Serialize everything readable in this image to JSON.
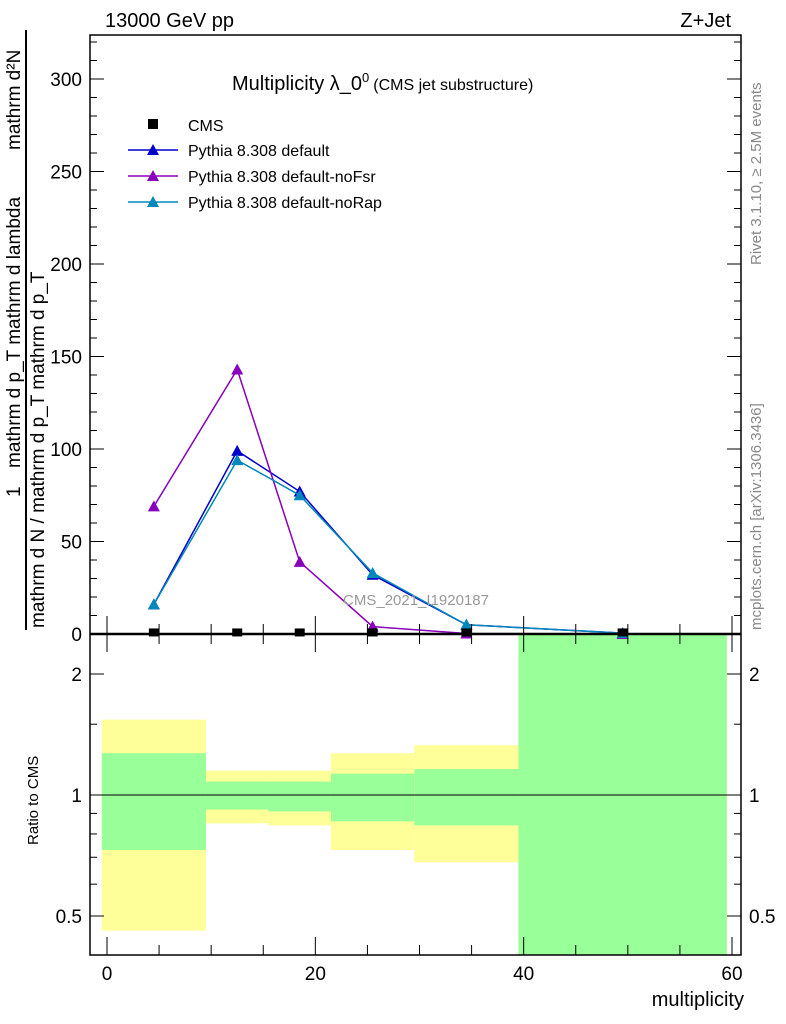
{
  "chart_data": {
    "type": "line",
    "title": "Multiplicity λ_0",
    "title_sup": "0",
    "title_note": "(CMS jet substructure)",
    "top_left": "13000 GeV pp",
    "top_right": "Z+Jet",
    "side_label_1": "Rivet 3.1.10, ≥ 2.5M events",
    "side_label_2": "mcplots.cern.ch [arXiv:1306.3436]",
    "watermark": "CMS_2021_I1920187",
    "ylabel_num": "mathrm d²N",
    "ylabel_den": "mathrm d p_T mathrm d lambda",
    "ylabel_main_1": "1",
    "ylabel_main_2": "mathrm d N / mathrm d p_T mathrm d p_T",
    "xlabel": "multiplicity",
    "ratio_ylabel": "Ratio to CMS",
    "xlim": [
      -0.5,
      60.5
    ],
    "ylim": [
      0,
      325
    ],
    "ratio_ylim": [
      0.4,
      2.5
    ],
    "xticks": [
      0,
      20,
      40,
      60
    ],
    "yticks": [
      0,
      50,
      100,
      150,
      200,
      250,
      300
    ],
    "ratio_yticks": [
      0.5,
      1,
      2
    ],
    "x": [
      4.5,
      12.5,
      18.5,
      25.5,
      34.5,
      49.5
    ],
    "bins": [
      [
        -0.5,
        9.5
      ],
      [
        9.5,
        15.5
      ],
      [
        15.5,
        21.5
      ],
      [
        21.5,
        29.5
      ],
      [
        29.5,
        39.5
      ],
      [
        39.5,
        59.5
      ]
    ],
    "data": {
      "name": "CMS",
      "values": [
        0.3,
        0.3,
        0.3,
        0.3,
        0.3,
        0.3
      ]
    },
    "series": [
      {
        "name": "Pythia 8.308 default",
        "color": "#0000cc",
        "values": [
          16,
          99,
          77,
          32,
          5,
          0.5
        ]
      },
      {
        "name": "Pythia 8.308 default-noFsr",
        "color": "#8800bb",
        "values": [
          69,
          143,
          39,
          4,
          0.3,
          0
        ]
      },
      {
        "name": "Pythia 8.308 default-noRap",
        "color": "#0088bb",
        "values": [
          16,
          94,
          75,
          33,
          5,
          0.5
        ]
      }
    ],
    "ratio_band_outer": {
      "color": "#ffff99",
      "lo": [
        0.46,
        0.85,
        0.84,
        0.73,
        0.68,
        0.4
      ],
      "hi": [
        1.54,
        1.15,
        1.15,
        1.27,
        1.33,
        2.5
      ]
    },
    "ratio_band_inner": {
      "color": "#99ff99",
      "lo": [
        0.73,
        0.92,
        0.91,
        0.86,
        0.84,
        0.4
      ],
      "hi": [
        1.27,
        1.08,
        1.08,
        1.13,
        1.16,
        2.5
      ]
    }
  }
}
